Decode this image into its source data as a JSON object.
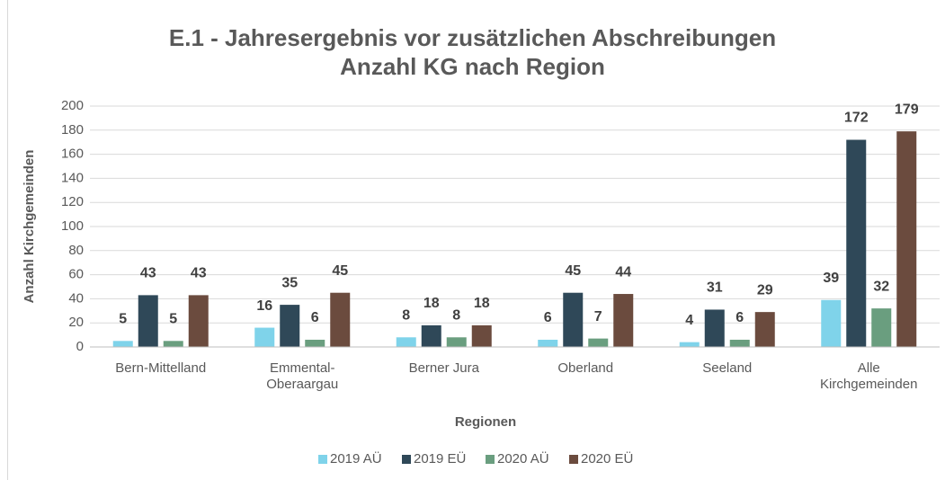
{
  "chart_data": {
    "type": "bar",
    "title": "E.1 - Jahresergebnis vor zusätzlichen Abschreibungen\nAnzahl KG nach Region",
    "x_label": "Regionen",
    "y_label": "Anzahl Kirchgemeinden",
    "categories": [
      "Bern-Mittelland",
      "Emmental-\nOberaargau",
      "Berner Jura",
      "Oberland",
      "Seeland",
      "Alle\nKirchgemeinden"
    ],
    "series": [
      {
        "name": "2019 AÜ",
        "color": "#7fd3ea",
        "values": [
          5,
          16,
          8,
          6,
          4,
          39
        ]
      },
      {
        "name": "2019 EÜ",
        "color": "#2f4858",
        "values": [
          43,
          35,
          18,
          45,
          31,
          172
        ]
      },
      {
        "name": "2020 AÜ",
        "color": "#6a9e7f",
        "values": [
          5,
          6,
          8,
          7,
          6,
          32
        ]
      },
      {
        "name": "2020 EÜ",
        "color": "#6b4b3e",
        "values": [
          43,
          45,
          18,
          44,
          29,
          179
        ]
      }
    ],
    "ylim": [
      0,
      200
    ],
    "yticks": [
      0,
      20,
      40,
      60,
      80,
      100,
      120,
      140,
      160,
      180,
      200
    ],
    "grid": true,
    "legend": "bottom"
  }
}
